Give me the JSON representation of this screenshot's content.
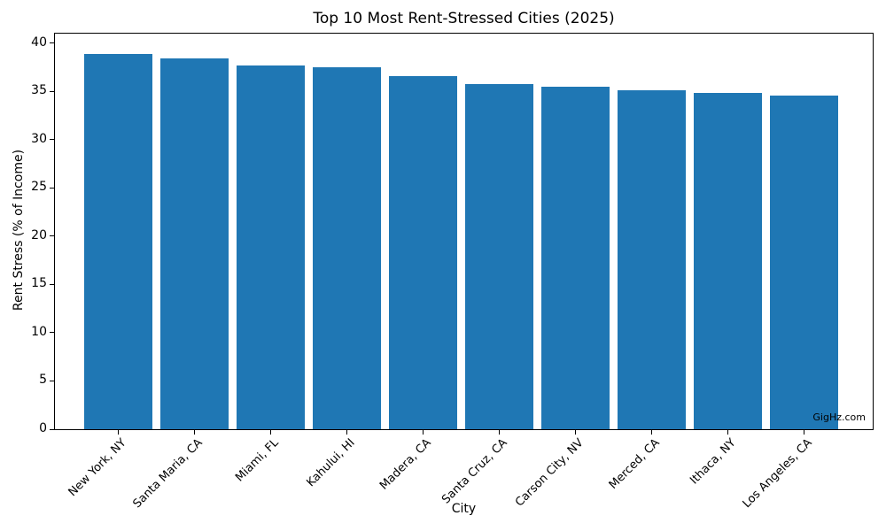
{
  "title": "Top 10 Most Rent-Stressed Cities (2025)",
  "watermark": "GigHz.com",
  "colors": {
    "bar": "#1f77b4",
    "axis": "#000000",
    "background": "#ffffff"
  },
  "chart_data": {
    "type": "bar",
    "title": "Top 10 Most Rent-Stressed Cities (2025)",
    "xlabel": "City",
    "ylabel": "Rent Stress (% of Income)",
    "categories": [
      "New York, NY",
      "Santa Maria, CA",
      "Miami, FL",
      "Kahului, HI",
      "Madera, CA",
      "Santa Cruz, CA",
      "Carson City, NV",
      "Merced, CA",
      "Ithaca, NY",
      "Los Angeles, CA"
    ],
    "values": [
      38.9,
      38.4,
      37.7,
      37.5,
      36.6,
      35.8,
      35.5,
      35.1,
      34.9,
      34.6
    ],
    "ylim": [
      0,
      41
    ],
    "yticks": [
      0,
      5,
      10,
      15,
      20,
      25,
      30,
      35,
      40
    ],
    "xtick_rotation": 45,
    "grid": false,
    "legend": false,
    "bar_color": "#1f77b4"
  }
}
